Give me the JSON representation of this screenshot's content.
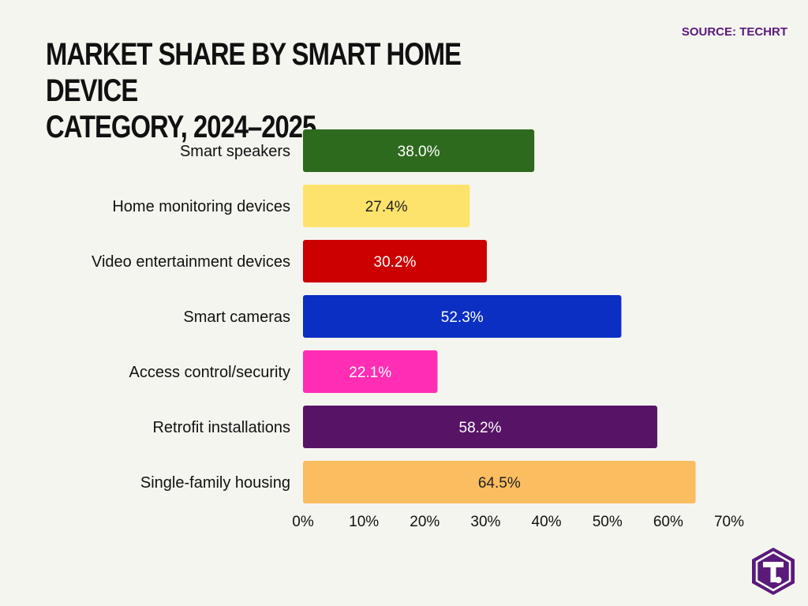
{
  "header": {
    "source_label": "SOURCE: TECHRT",
    "title": "MARKET SHARE BY SMART HOME DEVICE\nCATEGORY, 2024–2025"
  },
  "logo": {
    "icon": "t-hexagon-logo",
    "color": "#5a1a7a"
  },
  "chart_data": {
    "type": "bar",
    "orientation": "horizontal",
    "title": "MARKET SHARE BY SMART HOME DEVICE CATEGORY, 2024–2025",
    "categories": [
      "Smart speakers",
      "Home monitoring devices",
      "Video entertainment devices",
      "Smart cameras",
      "Access control/security",
      "Retrofit installations",
      "Single-family housing"
    ],
    "values": [
      38.0,
      27.4,
      30.2,
      52.3,
      22.1,
      58.2,
      64.5
    ],
    "data_labels": [
      "38.0%",
      "27.4%",
      "30.2%",
      "52.3%",
      "22.1%",
      "58.2%",
      "64.5%"
    ],
    "colors": [
      "#2e6a1e",
      "#fde36b",
      "#cc0000",
      "#0a2fc2",
      "#ff2eb4",
      "#571466",
      "#fbbd5f"
    ],
    "label_colors": [
      "#ffffff",
      "#222222",
      "#ffffff",
      "#ffffff",
      "#ffffff",
      "#ffffff",
      "#222222"
    ],
    "xlim": [
      0,
      70
    ],
    "x_ticks": [
      0,
      10,
      20,
      30,
      40,
      50,
      60,
      70
    ],
    "x_tick_labels": [
      "0%",
      "10%",
      "20%",
      "30%",
      "40%",
      "50%",
      "60%",
      "70%"
    ],
    "grid": false,
    "legend": "none"
  }
}
